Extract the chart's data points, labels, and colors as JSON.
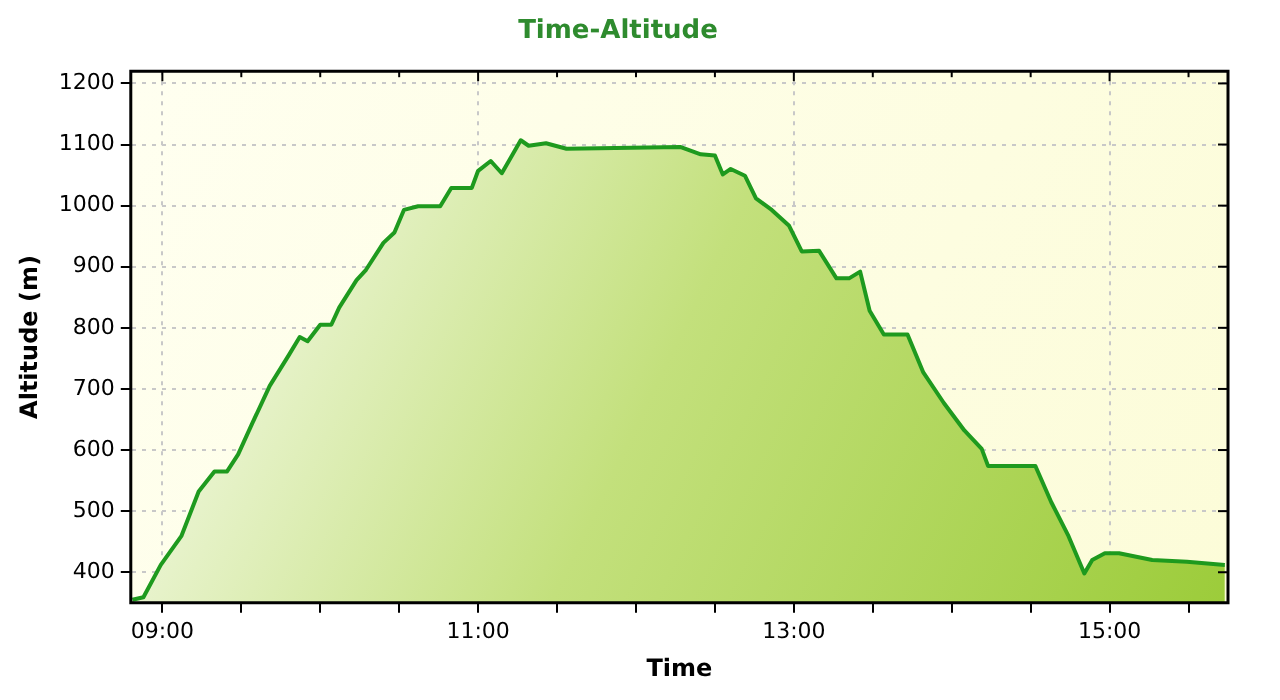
{
  "chart_data": {
    "type": "area",
    "title": "Time-Altitude",
    "xlabel": "Time",
    "ylabel": "Altitude (m)",
    "x": [
      8.81,
      8.88,
      8.99,
      9.12,
      9.23,
      9.33,
      9.41,
      9.48,
      9.57,
      9.68,
      9.8,
      9.87,
      9.92,
      10.0,
      10.07,
      10.12,
      10.23,
      10.29,
      10.4,
      10.47,
      10.53,
      10.62,
      10.76,
      10.83,
      10.96,
      11.0,
      11.08,
      11.15,
      11.27,
      11.32,
      11.43,
      11.56,
      12.28,
      12.41,
      12.5,
      12.55,
      12.6,
      12.69,
      12.76,
      12.86,
      12.97,
      13.05,
      13.16,
      13.27,
      13.35,
      13.42,
      13.48,
      13.57,
      13.72,
      13.82,
      13.95,
      14.08,
      14.19,
      14.23,
      14.53,
      14.63,
      14.74,
      14.84,
      14.89,
      14.97,
      15.06,
      15.27,
      15.49,
      15.73
    ],
    "series": [
      {
        "color": "#1e9a1e",
        "values": [
          355,
          359,
          412,
          459,
          532,
          565,
          565,
          593,
          644,
          705,
          755,
          785,
          778,
          805,
          805,
          833,
          878,
          895,
          939,
          956,
          993,
          999,
          999,
          1029,
          1029,
          1057,
          1073,
          1053,
          1107,
          1098,
          1102,
          1093,
          1096,
          1084,
          1082,
          1051,
          1060,
          1049,
          1012,
          993,
          967,
          925,
          926,
          881,
          881,
          892,
          828,
          789,
          789,
          727,
          677,
          632,
          602,
          574,
          574,
          515,
          459,
          398,
          420,
          431,
          431,
          420,
          417,
          412
        ]
      }
    ],
    "xlim": [
      8.8,
      15.75
    ],
    "xticks": [
      {
        "value": 9,
        "label": "09:00"
      },
      {
        "value": 9.5,
        "label": null
      },
      {
        "value": 10,
        "label": null
      },
      {
        "value": 10.5,
        "label": null
      },
      {
        "value": 11,
        "label": "11:00"
      },
      {
        "value": 11.5,
        "label": null
      },
      {
        "value": 12,
        "label": null
      },
      {
        "value": 12.5,
        "label": null
      },
      {
        "value": 13,
        "label": "13:00"
      },
      {
        "value": 13.5,
        "label": null
      },
      {
        "value": 14,
        "label": null
      },
      {
        "value": 14.5,
        "label": null
      },
      {
        "value": 15,
        "label": "15:00"
      },
      {
        "value": 15.5,
        "label": null
      }
    ],
    "ylim": [
      350,
      1220
    ],
    "yticks": [
      400,
      500,
      600,
      700,
      800,
      900,
      1000,
      1100,
      1200
    ],
    "grid": true
  }
}
